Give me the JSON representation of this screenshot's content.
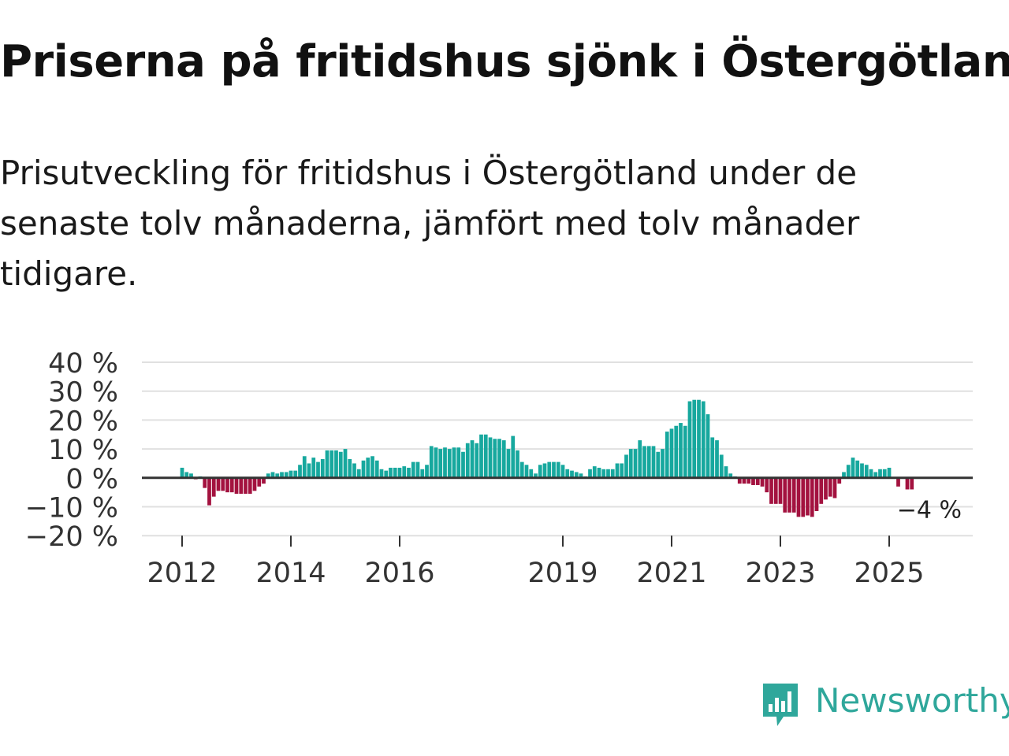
{
  "title": "Priserna på fritidshus sjönk i Östergötland",
  "subtitle": "Prisutveckling för fritidshus i Östergötland under de senaste tolv månaderna, jämfört med tolv månader tidigare.",
  "logo": {
    "text": "Newsworthy",
    "icon": "newsworthy-logo-icon",
    "color": "#2fa79b"
  },
  "colors": {
    "positive": "#17a89e",
    "negative": "#a3123f",
    "grid": "#e0e0e0",
    "zero": "#333333"
  },
  "chart_data": {
    "type": "bar",
    "title": "Priserna på fritidshus sjönk i Östergötland",
    "ylabel": "",
    "ylim": [
      -20,
      40
    ],
    "yticks": [
      40,
      30,
      20,
      10,
      0,
      -10,
      -20
    ],
    "ytick_labels": [
      "40 %",
      "30 %",
      "20 %",
      "10 %",
      "0 %",
      "−10 %",
      "−20 %"
    ],
    "xticks": [
      {
        "label": "2012",
        "index": 0
      },
      {
        "label": "2014",
        "index": 24
      },
      {
        "label": "2016",
        "index": 48
      },
      {
        "label": "2019",
        "index": 84
      },
      {
        "label": "2021",
        "index": 108
      },
      {
        "label": "2023",
        "index": 132
      },
      {
        "label": "2025",
        "index": 156
      }
    ],
    "start": "2012-01",
    "frequency": "monthly",
    "last_label": "−4 %",
    "values": [
      3.5,
      2,
      1.5,
      -0.5,
      0.5,
      -3.5,
      -9.5,
      -6.5,
      -4.5,
      -4.5,
      -5,
      -5,
      -5.5,
      -5.5,
      -5.5,
      -5.5,
      -4.5,
      -3,
      -2,
      1.5,
      2,
      1.5,
      2,
      2,
      2.5,
      2.5,
      4.5,
      7.5,
      5,
      7,
      5.5,
      6.5,
      9.5,
      9.5,
      9.5,
      9,
      10,
      6.5,
      5,
      3,
      6,
      7,
      7.5,
      6,
      3,
      2.5,
      3.5,
      3.5,
      3.5,
      4,
      3.5,
      5.5,
      5.5,
      3,
      4.5,
      11,
      10.5,
      10,
      10.5,
      10,
      10.5,
      10.5,
      9,
      12,
      13,
      12,
      15,
      15,
      14,
      13.5,
      13.5,
      13,
      10,
      14.5,
      9.5,
      5.5,
      4.5,
      3,
      1.5,
      4.5,
      5,
      5.5,
      5.5,
      5.5,
      4.5,
      3,
      2.5,
      2,
      1.5,
      0.5,
      3,
      4,
      3.5,
      3,
      3,
      3,
      5,
      5,
      8,
      10,
      10,
      13,
      11,
      11,
      11,
      9,
      10,
      16,
      17,
      18,
      19,
      18,
      26.5,
      27,
      27,
      26.5,
      22,
      14,
      13,
      8,
      4,
      1.5,
      0.5,
      -2,
      -2,
      -2,
      -2.5,
      -2.5,
      -3,
      -5,
      -9,
      -9,
      -9,
      -12,
      -12,
      -12,
      -13.5,
      -13.5,
      -13,
      -13.5,
      -11.5,
      -9,
      -7.5,
      -6.5,
      -7,
      -2,
      2,
      4.5,
      7,
      6,
      5,
      4.5,
      3,
      2,
      3,
      3,
      3.5,
      0,
      -3,
      0,
      -4,
      -4
    ]
  }
}
